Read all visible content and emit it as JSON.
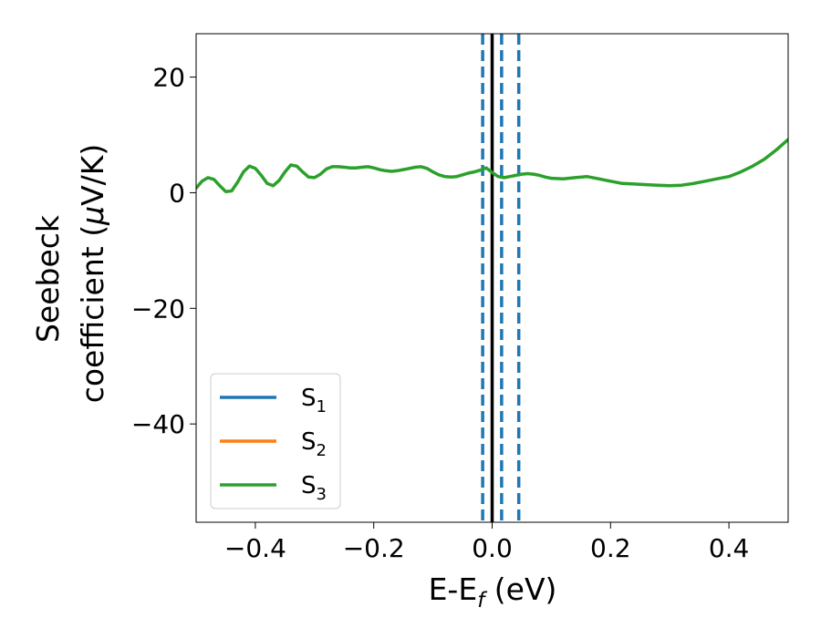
{
  "chart_data": {
    "type": "line",
    "xlabel_main": "E-E",
    "xlabel_sub": "f",
    "xlabel_unit": " (eV)",
    "ylabel_line1": "Seebeck",
    "ylabel_line2_a": "coefficient  (",
    "ylabel_line2_mu": "μ",
    "ylabel_line2_b": "V/K)",
    "xlim": [
      -0.5,
      0.5
    ],
    "ylim": [
      -57,
      27.5
    ],
    "xticks": [
      -0.4,
      -0.2,
      0.0,
      0.2,
      0.4
    ],
    "xtick_labels": [
      "−0.4",
      "−0.2",
      "0.0",
      "0.2",
      "0.4"
    ],
    "yticks": [
      20,
      0,
      -20,
      -40
    ],
    "ytick_labels": [
      "20",
      "0",
      "−20",
      "−40"
    ],
    "legend_placement": "lower-left",
    "grid": false,
    "series": [
      {
        "name": "S",
        "sub": "1",
        "color": "#1f77b4",
        "x": [],
        "y": []
      },
      {
        "name": "S",
        "sub": "2",
        "color": "#ff7f0e",
        "x": [],
        "y": []
      },
      {
        "name": "S",
        "sub": "3",
        "color": "#2ca02c",
        "x": [
          -0.5,
          -0.49,
          -0.48,
          -0.47,
          -0.46,
          -0.45,
          -0.44,
          -0.43,
          -0.42,
          -0.41,
          -0.4,
          -0.39,
          -0.38,
          -0.37,
          -0.36,
          -0.35,
          -0.34,
          -0.33,
          -0.32,
          -0.31,
          -0.3,
          -0.29,
          -0.28,
          -0.27,
          -0.26,
          -0.25,
          -0.24,
          -0.23,
          -0.22,
          -0.21,
          -0.2,
          -0.19,
          -0.18,
          -0.17,
          -0.16,
          -0.15,
          -0.14,
          -0.13,
          -0.12,
          -0.11,
          -0.1,
          -0.09,
          -0.08,
          -0.07,
          -0.06,
          -0.05,
          -0.04,
          -0.03,
          -0.02,
          -0.01,
          0.0,
          0.01,
          0.02,
          0.03,
          0.04,
          0.05,
          0.06,
          0.07,
          0.08,
          0.09,
          0.1,
          0.12,
          0.14,
          0.16,
          0.18,
          0.2,
          0.22,
          0.24,
          0.26,
          0.28,
          0.3,
          0.32,
          0.34,
          0.36,
          0.38,
          0.4,
          0.42,
          0.44,
          0.46,
          0.48,
          0.5
        ],
        "y": [
          0.8,
          2.0,
          2.6,
          2.3,
          1.2,
          0.2,
          0.3,
          1.8,
          3.6,
          4.6,
          4.2,
          3.0,
          1.6,
          1.2,
          2.1,
          3.6,
          4.8,
          4.6,
          3.6,
          2.7,
          2.6,
          3.2,
          4.1,
          4.5,
          4.5,
          4.4,
          4.3,
          4.3,
          4.4,
          4.5,
          4.3,
          4.0,
          3.8,
          3.7,
          3.8,
          4.0,
          4.2,
          4.4,
          4.5,
          4.2,
          3.6,
          3.1,
          2.8,
          2.7,
          2.8,
          3.1,
          3.4,
          3.6,
          3.9,
          4.3,
          3.5,
          2.8,
          2.6,
          2.8,
          3.0,
          3.2,
          3.3,
          3.2,
          3.0,
          2.7,
          2.5,
          2.4,
          2.6,
          2.8,
          2.4,
          2.0,
          1.6,
          1.5,
          1.4,
          1.3,
          1.2,
          1.3,
          1.6,
          2.0,
          2.4,
          2.8,
          3.6,
          4.6,
          5.8,
          7.4,
          9.2
        ]
      }
    ],
    "vlines": [
      {
        "x": -0.016,
        "color": "#1f77b4",
        "style": "dashed"
      },
      {
        "x": 0.0,
        "color": "#000000",
        "style": "solid"
      },
      {
        "x": 0.016,
        "color": "#1f77b4",
        "style": "dashed"
      },
      {
        "x": 0.045,
        "color": "#1f77b4",
        "style": "dashed"
      }
    ]
  }
}
